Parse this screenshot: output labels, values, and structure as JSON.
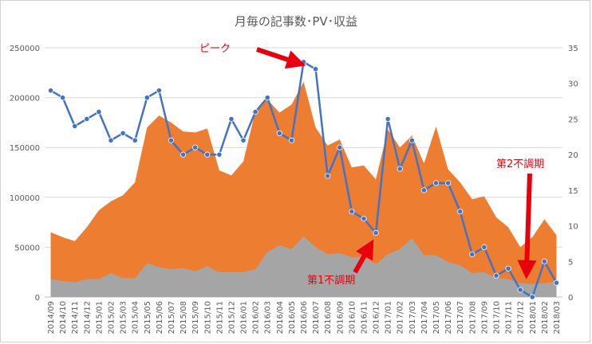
{
  "chart_data": {
    "type": "area",
    "title": "月毎の記事数･PV･収益",
    "categories": [
      "2014/09",
      "2014/10",
      "2014/11",
      "2014/12",
      "2015/01",
      "2015/02",
      "2015/03",
      "2015/04",
      "2015/05",
      "2015/06",
      "2015/07",
      "2015/08",
      "2015/09",
      "2015/10",
      "2015/11",
      "2015/12",
      "2016/01",
      "2016/02",
      "2016/03",
      "2016/04",
      "2016/05",
      "2016/06",
      "2016/07",
      "2016/08",
      "2016/09",
      "2016/10",
      "2016/11",
      "2016/12",
      "2017/01",
      "2017/02",
      "2017/03",
      "2017/04",
      "2017/05",
      "2017/06",
      "2017/07",
      "2017/08",
      "2017/09",
      "2017/10",
      "2017/11",
      "2017/12",
      "2018/01",
      "2018/02",
      "2018/03"
    ],
    "left_axis": {
      "min": 0,
      "max": 250000,
      "ticks": [
        "0",
        "50000",
        "100000",
        "150000",
        "200000",
        "250000"
      ]
    },
    "right_axis": {
      "min": 0,
      "max": 35,
      "ticks": [
        "0",
        "5",
        "10",
        "15",
        "20",
        "25",
        "30",
        "35"
      ]
    },
    "series": [
      {
        "type": "area",
        "axis": "left",
        "color": "#ed7d31",
        "values": [
          65000,
          60000,
          56000,
          70000,
          87000,
          96000,
          102000,
          115000,
          170000,
          182000,
          175000,
          166000,
          165000,
          169000,
          127000,
          122000,
          136000,
          187000,
          198000,
          185000,
          193000,
          216000,
          170000,
          152000,
          158000,
          130000,
          132000,
          118000,
          168000,
          150000,
          162000,
          134000,
          171000,
          128000,
          115000,
          98000,
          101000,
          80000,
          70000,
          50000,
          60000,
          78000,
          62000
        ]
      },
      {
        "type": "area",
        "axis": "left",
        "color": "#a5a5a5",
        "values": [
          18000,
          16000,
          15000,
          18000,
          18000,
          24000,
          19000,
          19000,
          34000,
          30000,
          28000,
          29000,
          26000,
          31000,
          25000,
          25000,
          25000,
          28000,
          45000,
          52000,
          48000,
          61000,
          50000,
          43000,
          44000,
          40000,
          40000,
          33000,
          43000,
          48000,
          59000,
          42000,
          42000,
          35000,
          32000,
          24000,
          25000,
          19000,
          18000,
          14000,
          13000,
          14000,
          15000
        ]
      },
      {
        "type": "line",
        "axis": "right",
        "color": "#4472c4",
        "values": [
          29,
          28,
          24,
          25,
          26,
          22,
          23,
          22,
          28,
          29,
          22,
          20,
          21,
          20,
          20,
          25,
          22,
          26,
          28,
          23,
          22,
          33,
          32,
          17,
          21,
          12,
          11,
          9,
          25,
          18,
          22,
          15,
          16,
          16,
          12,
          6,
          7,
          3,
          4,
          1,
          0,
          5,
          2
        ]
      }
    ],
    "annotations": [
      {
        "text": "ピーク"
      },
      {
        "text": "第1不調期"
      },
      {
        "text": "第2不調期"
      }
    ]
  }
}
